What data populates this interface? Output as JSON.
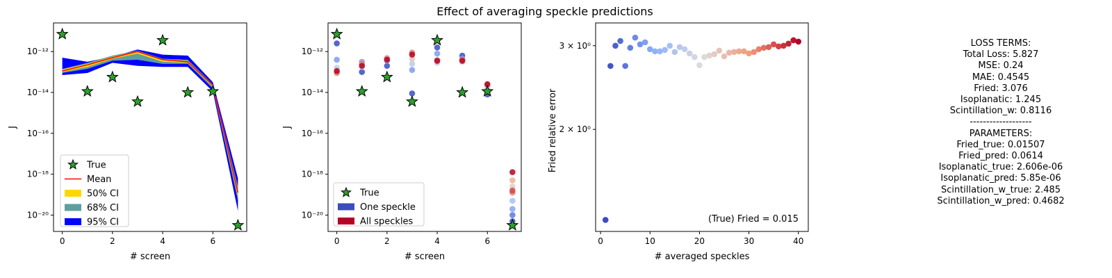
{
  "figure_title": "Effect of averaging speckle predictions",
  "chart_data": [
    {
      "type": "line",
      "name": "left-panel",
      "xlabel": "# screen",
      "ylabel": "J",
      "yscale": "log",
      "xlim": [
        -0.35,
        7.35
      ],
      "ylim_exp": [
        -20.8,
        -10.6
      ],
      "xticks": [
        0,
        2,
        4,
        6
      ],
      "yticks_exp": [
        -20,
        -18,
        -16,
        -14,
        -12
      ],
      "true": {
        "x": [
          0,
          1,
          2,
          3,
          4,
          5,
          6,
          7
        ],
        "exp": [
          -11.15,
          -13.95,
          -13.25,
          -14.45,
          -11.45,
          -14.0,
          -13.95,
          -20.5
        ]
      },
      "mean": {
        "x": [
          0,
          1,
          2,
          3,
          4,
          5,
          6,
          7
        ],
        "exp": [
          -12.95,
          -12.65,
          -12.3,
          -12.0,
          -12.4,
          -12.5,
          -13.65,
          -18.9
        ]
      },
      "bands": [
        {
          "label": "95% CI",
          "color": "#0000ff",
          "lo": [
            -13.15,
            -13.05,
            -12.55,
            -12.7,
            -12.75,
            -12.75,
            -13.95,
            -19.8
          ],
          "hi": [
            -12.3,
            -12.5,
            -12.25,
            -11.9,
            -12.15,
            -12.2,
            -13.5,
            -18.2
          ]
        },
        {
          "label": "68% CI",
          "color": "#5f9ea0",
          "lo": [
            -13.05,
            -12.85,
            -12.45,
            -12.4,
            -12.6,
            -12.6,
            -13.8,
            -19.3
          ],
          "hi": [
            -12.85,
            -12.55,
            -12.2,
            -11.95,
            -12.35,
            -12.4,
            -13.6,
            -18.6
          ]
        },
        {
          "label": "50% CI",
          "color": "#ffd700",
          "lo": [
            -13.0,
            -12.75,
            -12.35,
            -12.1,
            -12.5,
            -12.55,
            -13.72,
            -19.1
          ],
          "hi": [
            -12.88,
            -12.6,
            -12.25,
            -11.98,
            -12.38,
            -12.45,
            -13.62,
            -18.75
          ]
        }
      ],
      "legend": [
        "True",
        "Mean",
        "50% CI",
        "68% CI",
        "95% CI"
      ],
      "legend_placement": "lower-left"
    },
    {
      "type": "scatter",
      "name": "middle-panel",
      "xlabel": "# screen",
      "ylabel": "J",
      "yscale": "log",
      "xlim": [
        -0.35,
        7.35
      ],
      "ylim_exp": [
        -20.8,
        -10.6
      ],
      "xticks": [
        0,
        2,
        4,
        6
      ],
      "yticks_exp": [
        -20,
        -18,
        -16,
        -14,
        -12
      ],
      "true": {
        "x": [
          0,
          1,
          2,
          3,
          4,
          5,
          6,
          7
        ],
        "exp": [
          -11.15,
          -13.95,
          -13.25,
          -14.45,
          -11.45,
          -14.0,
          -13.95,
          -20.5
        ]
      },
      "speckles": [
        {
          "x": 0,
          "exp": [
            -11.6,
            -12.4,
            -12.8,
            -13.0,
            -13.05,
            -12.95
          ]
        },
        {
          "x": 1,
          "exp": [
            -13.0,
            -12.5,
            -12.75,
            -12.65,
            -12.6,
            -12.7
          ]
        },
        {
          "x": 2,
          "exp": [
            -12.7,
            -12.45,
            -12.3,
            -12.4,
            -12.35,
            -12.4
          ]
        },
        {
          "x": 3,
          "exp": [
            -14.05,
            -12.9,
            -12.6,
            -12.35,
            -12.05,
            -12.15
          ]
        },
        {
          "x": 4,
          "exp": [
            -11.8,
            -12.1,
            -12.55,
            -12.4,
            -12.45,
            -12.45
          ]
        },
        {
          "x": 5,
          "exp": [
            -12.2,
            -12.35,
            -12.45,
            -12.5,
            -12.4,
            -12.45
          ]
        },
        {
          "x": 6,
          "exp": [
            -14.1,
            -13.9,
            -13.8,
            -13.7,
            -13.6,
            -13.6
          ]
        },
        {
          "x": 7,
          "exp": [
            -20.3,
            -20.0,
            -19.7,
            -19.3,
            -18.9,
            -18.6,
            -18.3,
            -18.9,
            -18.8,
            -17.9
          ]
        }
      ],
      "legend": [
        "True",
        "One speckle",
        "All speckles"
      ],
      "legend_colors": [
        "#3b4cc0",
        "#b40426"
      ],
      "legend_placement": "lower-left"
    },
    {
      "type": "scatter",
      "name": "right-panel",
      "xlabel": "# averaged speckles",
      "ylabel": "Fried relative error",
      "yscale": "log",
      "xlim": [
        -1.0,
        42.0
      ],
      "ylim": [
        1.22,
        3.35
      ],
      "xticks": [
        0,
        10,
        20,
        30,
        40
      ],
      "yticks": [
        {
          "value": 2,
          "label": "2 × 10⁰"
        },
        {
          "value": 3,
          "label": "3 × 10⁰"
        }
      ],
      "x": [
        1,
        2,
        3,
        4,
        5,
        6,
        7,
        8,
        9,
        10,
        11,
        12,
        13,
        14,
        15,
        16,
        17,
        18,
        19,
        20,
        21,
        22,
        23,
        24,
        25,
        26,
        27,
        28,
        29,
        30,
        31,
        32,
        33,
        34,
        35,
        36,
        37,
        38,
        39,
        40
      ],
      "y": [
        1.29,
        2.72,
        3.0,
        3.07,
        2.72,
        2.97,
        3.12,
        3.02,
        3.05,
        2.95,
        2.92,
        2.92,
        2.94,
        3.0,
        2.91,
        2.98,
        2.95,
        2.89,
        2.84,
        2.73,
        2.84,
        2.86,
        2.88,
        2.93,
        2.85,
        2.9,
        2.91,
        2.92,
        2.92,
        2.89,
        2.91,
        2.95,
        2.97,
        2.98,
        3.02,
        2.99,
        3.0,
        3.03,
        3.08,
        3.06
      ],
      "colormap": "coolwarm",
      "annotation": "(True) Fried = 0.015"
    }
  ],
  "loss_text": {
    "lines": [
      "LOSS TERMS:",
      "Total Loss: 5.827",
      "MSE: 0.24",
      "MAE: 0.4545",
      "Fried: 3.076",
      "Isoplanatic: 1.245",
      "Scintillation_w: 0.8116",
      "-------------------",
      "PARAMETERS:",
      "Fried_true: 0.01507",
      "Fried_pred: 0.0614",
      "Isoplanatic_true: 2.606e-06",
      "Isoplanatic_pred: 5.85e-06",
      "Scintillation_w_true: 2.485",
      "Scintillation_w_pred: 0.4682"
    ]
  }
}
